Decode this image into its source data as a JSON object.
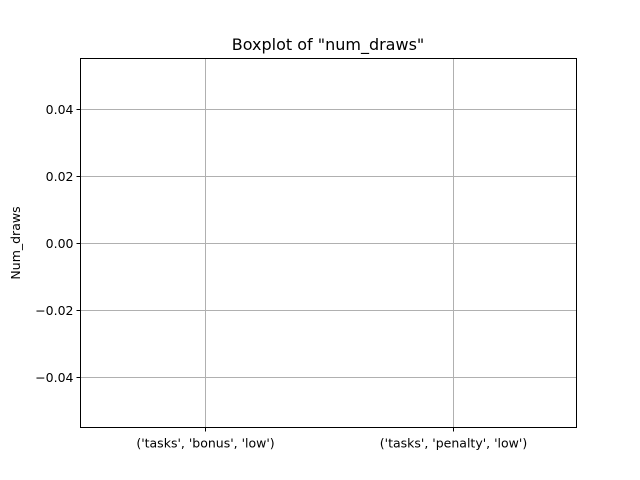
{
  "chart_data": {
    "type": "box",
    "title": "Boxplot of \"num_draws\"",
    "xlabel": "",
    "ylabel": "Num_draws",
    "categories": [
      "('tasks', 'bonus', 'low')",
      "('tasks', 'penalty', 'low')"
    ],
    "values": [
      [],
      []
    ],
    "ylim": [
      -0.055,
      0.055
    ],
    "yticks": [
      -0.04,
      -0.02,
      0.0,
      0.02,
      0.04
    ],
    "ytick_labels": [
      "−0.04",
      "−0.02",
      "0.00",
      "0.02",
      "0.04"
    ],
    "grid": true,
    "colors": {
      "grid": "#b0b0b0",
      "frame": "#000000",
      "text": "#000000"
    }
  }
}
